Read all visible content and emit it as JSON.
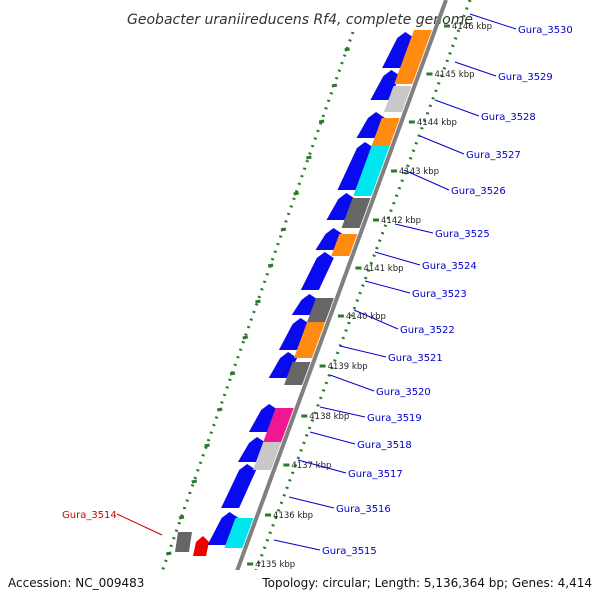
{
  "title": "Geobacter uraniireducens Rf4, complete genome",
  "footer": {
    "accession": "Accession: NC_009483",
    "topology": "Topology: circular; Length: 5,136,364 bp; Genes: 4,414"
  },
  "colors": {
    "blue": "#0a0af0",
    "orange": "#ff8c10",
    "gray": "#666666",
    "light_gray": "#c8c8c8",
    "cyan": "#00e6f0",
    "magenta": "#f01890",
    "red": "#ee0000",
    "backbone": "#808080",
    "tick_green": "#2a7a2a",
    "label_blue": "#0000cc",
    "label_red": "#cc0000"
  },
  "kbp_ticks": [
    "4146 kbp",
    "4145 kbp",
    "4144 kbp",
    "4143 kbp",
    "4142 kbp",
    "4141 kbp",
    "4140 kbp",
    "4139 kbp",
    "4138 kbp",
    "4137 kbp",
    "4136 kbp",
    "4135 kbp"
  ],
  "gene_labels": [
    {
      "text": "Gura_3530",
      "color": "blue"
    },
    {
      "text": "Gura_3529",
      "color": "blue"
    },
    {
      "text": "Gura_3528",
      "color": "blue"
    },
    {
      "text": "Gura_3527",
      "color": "blue"
    },
    {
      "text": "Gura_3526",
      "color": "blue"
    },
    {
      "text": "Gura_3525",
      "color": "blue"
    },
    {
      "text": "Gura_3524",
      "color": "blue"
    },
    {
      "text": "Gura_3523",
      "color": "blue"
    },
    {
      "text": "Gura_3522",
      "color": "blue"
    },
    {
      "text": "Gura_3521",
      "color": "blue"
    },
    {
      "text": "Gura_3520",
      "color": "blue"
    },
    {
      "text": "Gura_3519",
      "color": "blue"
    },
    {
      "text": "Gura_3518",
      "color": "blue"
    },
    {
      "text": "Gura_3517",
      "color": "blue"
    },
    {
      "text": "Gura_3516",
      "color": "blue"
    },
    {
      "text": "Gura_3515",
      "color": "blue"
    },
    {
      "text": "Gura_3514",
      "color": "red"
    }
  ]
}
